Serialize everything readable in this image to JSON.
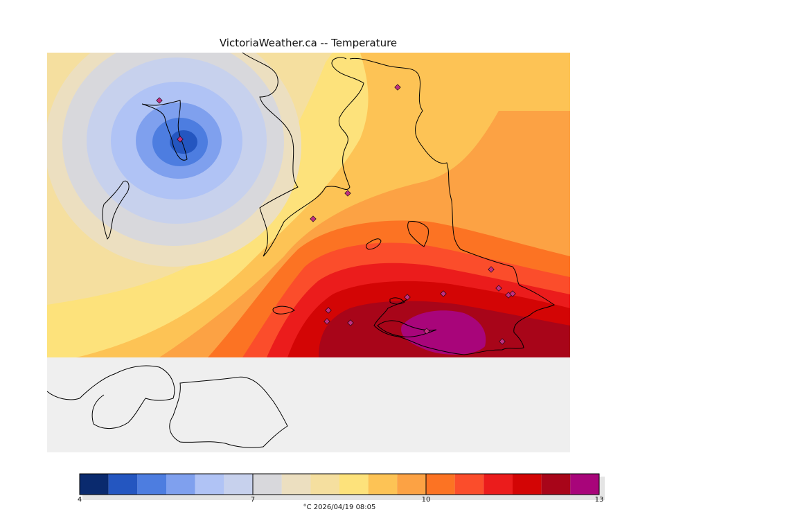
{
  "title": "VictoriaWeather.ca -- Temperature",
  "colors": {
    "background": "#efefef",
    "land_unfilled": "#ffffff",
    "coastline": "#000000",
    "station_marker": "#c03080"
  },
  "colorbar": {
    "min": 4,
    "max": 13,
    "tick_labels": [
      "4",
      "7",
      "10",
      "13"
    ],
    "bins": [
      {
        "low": 4.0,
        "high": 4.5,
        "color": "#0a2a6e"
      },
      {
        "low": 4.5,
        "high": 5.0,
        "color": "#2456c0"
      },
      {
        "low": 5.0,
        "high": 5.5,
        "color": "#4d7de0"
      },
      {
        "low": 5.5,
        "high": 6.0,
        "color": "#7fa0ee"
      },
      {
        "low": 6.0,
        "high": 6.5,
        "color": "#b0c3f5"
      },
      {
        "low": 6.5,
        "high": 7.0,
        "color": "#c7d1ed"
      },
      {
        "low": 7.0,
        "high": 7.5,
        "color": "#d8d8dc"
      },
      {
        "low": 7.5,
        "high": 8.0,
        "color": "#ecdfc0"
      },
      {
        "low": 8.0,
        "high": 8.5,
        "color": "#f5df9f"
      },
      {
        "low": 8.5,
        "high": 9.0,
        "color": "#fde27b"
      },
      {
        "low": 9.0,
        "high": 9.5,
        "color": "#fdc355"
      },
      {
        "low": 9.5,
        "high": 10.0,
        "color": "#fca244"
      },
      {
        "low": 10.0,
        "high": 10.5,
        "color": "#fc7323"
      },
      {
        "low": 10.5,
        "high": 11.0,
        "color": "#fb4d2b"
      },
      {
        "low": 11.0,
        "high": 11.5,
        "color": "#eb1c1c"
      },
      {
        "low": 11.5,
        "high": 12.0,
        "color": "#d30505"
      },
      {
        "low": 12.0,
        "high": 12.5,
        "color": "#a80519"
      },
      {
        "low": 12.5,
        "high": 13.0,
        "color": "#a8057a"
      }
    ]
  },
  "footer": "°C 2026/04/19 08:05"
}
